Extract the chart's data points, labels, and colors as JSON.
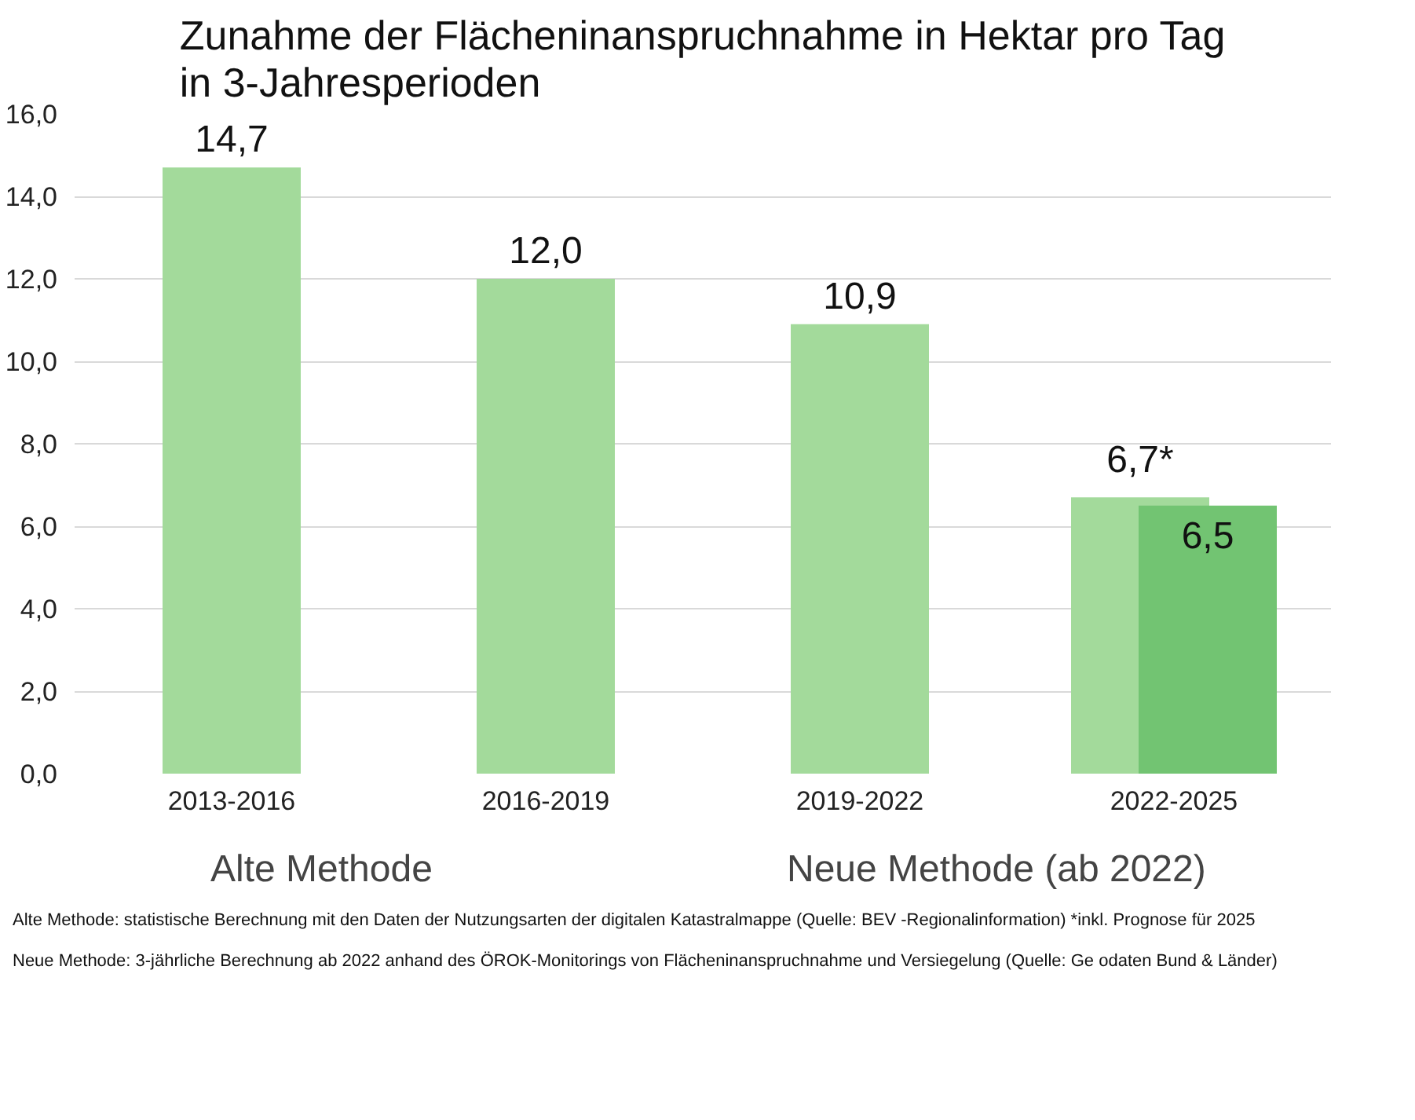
{
  "chart_data": {
    "type": "bar",
    "title": "Zunahme der Flächeninanspruchnahme in Hektar pro Tag\nin 3-Jahresperioden",
    "categories": [
      "2013-2016",
      "2016-2019",
      "2019-2022",
      "2022-2025"
    ],
    "series": [
      {
        "name": "Alte Methode",
        "color": "#a3da9b",
        "values": [
          14.7,
          12.0,
          10.9,
          6.7
        ],
        "value_labels": [
          "14,7",
          "12,0",
          "10,9",
          "6,7*"
        ]
      },
      {
        "name": "Neue Methode (ab 2022)",
        "color": "#72c472",
        "values": [
          null,
          null,
          null,
          6.5
        ],
        "value_labels": [
          null,
          null,
          null,
          "6,5"
        ]
      }
    ],
    "ylim": [
      0,
      16
    ],
    "yticks": [
      {
        "value": 0,
        "label": "0,0"
      },
      {
        "value": 2,
        "label": "2,0"
      },
      {
        "value": 4,
        "label": "4,0"
      },
      {
        "value": 6,
        "label": "6,0"
      },
      {
        "value": 8,
        "label": "8,0"
      },
      {
        "value": 10,
        "label": "10,0"
      },
      {
        "value": 12,
        "label": "12,0"
      },
      {
        "value": 14,
        "label": "14,0"
      },
      {
        "value": 16,
        "label": "16,0"
      }
    ],
    "grid": "y",
    "legend": "bottom",
    "annotations": [
      "Alte Methode:  statistische Berechnung mit den Daten der Nutzungsarten der digitalen Katastralmappe (Quelle: BEV  -Regionalinformation) *inkl. Prognose für 2025",
      "Neue Methode: 3-jährliche Berechnung ab 2022 anhand des ÖROK-Monitorings von Flächeninanspruchnahme und Versiegelung (Quelle: Ge odaten Bund & Länder)"
    ]
  }
}
